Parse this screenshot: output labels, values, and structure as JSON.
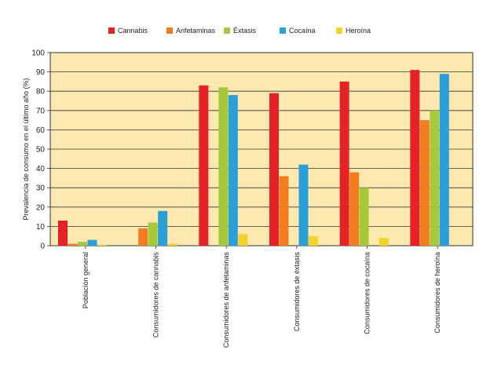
{
  "legend": {
    "items": [
      {
        "label": "Cannabis",
        "color": "#e52228"
      },
      {
        "label": "Anfetaminas",
        "color": "#f27d1e"
      },
      {
        "label": "Éxtasis",
        "color": "#a5c93a"
      },
      {
        "label": "Cocaína",
        "color": "#2a9fd8"
      },
      {
        "label": "Heroína",
        "color": "#f2d22c"
      }
    ]
  },
  "colors": {
    "plot_background": "#fde9b0",
    "grid": "#333333"
  },
  "chart_data": {
    "type": "bar",
    "title": "",
    "xlabel": "",
    "ylabel": "Prevalencia de consumo en el último año (%)",
    "ylim": [
      0,
      100
    ],
    "yticks": [
      0,
      10,
      20,
      30,
      40,
      50,
      60,
      70,
      80,
      90,
      100
    ],
    "grid": true,
    "legend_position": "top",
    "categories": [
      "Población general",
      "Consumidores de cannabis",
      "Consumidores de anfetaminas",
      "Consumidores de éxtasis",
      "Consumidores de cocaína",
      "Consumidores de heroína"
    ],
    "series": [
      {
        "name": "Cannabis",
        "color": "#e52228",
        "values": [
          13,
          null,
          83,
          79,
          85,
          91
        ]
      },
      {
        "name": "Anfetaminas",
        "color": "#f27d1e",
        "values": [
          1,
          9,
          null,
          36,
          38,
          65
        ]
      },
      {
        "name": "Éxtasis",
        "color": "#a5c93a",
        "values": [
          2,
          12,
          82,
          null,
          30,
          70
        ]
      },
      {
        "name": "Cocaína",
        "color": "#2a9fd8",
        "values": [
          3,
          18,
          78,
          42,
          null,
          89
        ]
      },
      {
        "name": "Heroína",
        "color": "#f2d22c",
        "values": [
          0.5,
          1,
          6,
          5,
          4,
          null
        ]
      }
    ]
  }
}
